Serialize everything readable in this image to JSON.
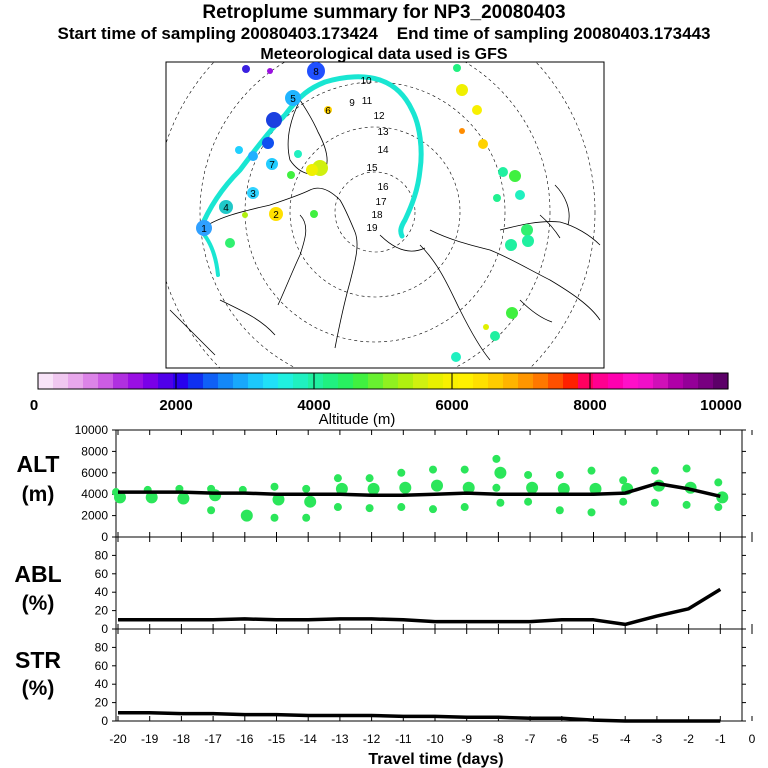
{
  "header": {
    "title": "Retroplume summary for NP3_20080403",
    "subtitle_start": "Start time of sampling 20080403.173424",
    "subtitle_end": "End time of sampling 20080403.173443",
    "met_line": "Meteorological data used is GFS"
  },
  "colors": {
    "plume": "#19e6d2",
    "markers": "#2be65a",
    "line": "#000000"
  },
  "map": {
    "day_labels": [
      {
        "n": "1",
        "c": "#30a0ff"
      },
      {
        "n": "2",
        "c": "#ffe000"
      },
      {
        "n": "3",
        "c": "#30d2ff"
      },
      {
        "n": "4",
        "c": "#20c8c8"
      },
      {
        "n": "5",
        "c": "#20b4ff"
      },
      {
        "n": "6",
        "c": "#ffd200"
      },
      {
        "n": "7",
        "c": "#22ccff"
      },
      {
        "n": "8",
        "c": "#2050ff"
      },
      {
        "n": "9",
        "c": "#ffffff"
      },
      {
        "n": "10",
        "c": "#ffffff"
      },
      {
        "n": "11",
        "c": "#ffffff"
      },
      {
        "n": "12",
        "c": "#ffffff"
      },
      {
        "n": "13",
        "c": "#ffffff"
      },
      {
        "n": "14",
        "c": "#ffffff"
      },
      {
        "n": "15",
        "c": "#ffffff"
      },
      {
        "n": "16",
        "c": "#ffffff"
      },
      {
        "n": "17",
        "c": "#ffffff"
      },
      {
        "n": "18",
        "c": "#ffffff"
      },
      {
        "n": "19",
        "c": "#ffffff"
      }
    ]
  },
  "colorbar": {
    "label": "Altitude (m)",
    "ticks": [
      "0",
      "2000",
      "4000",
      "6000",
      "8000",
      "10000"
    ],
    "colors": [
      "#f8e4f8",
      "#f0c8f0",
      "#e8a8ec",
      "#dc84e8",
      "#cc5ce4",
      "#b030e0",
      "#9a10e4",
      "#7a00e8",
      "#5000ea",
      "#2800ee",
      "#1030f0",
      "#1060f6",
      "#1488f8",
      "#18a8fc",
      "#1cc8fc",
      "#20e0f8",
      "#20f0e0",
      "#20f0c0",
      "#20f0a0",
      "#20f080",
      "#28f060",
      "#40f040",
      "#68f030",
      "#90f020",
      "#b0f010",
      "#d0f010",
      "#e8f000",
      "#f8f000",
      "#fff000",
      "#ffe000",
      "#ffcc00",
      "#ffb400",
      "#ff9600",
      "#ff7800",
      "#ff5000",
      "#ff2000",
      "#ff0060",
      "#ff0090",
      "#ff00b0",
      "#ff10c8",
      "#f010c8",
      "#d010b8",
      "#b000a8",
      "#940098",
      "#780080",
      "#5c0068"
    ]
  },
  "panels": {
    "alt_label": [
      "ALT",
      "(m)"
    ],
    "abl_label": [
      "ABL",
      "(%)"
    ],
    "str_label": [
      "STR",
      "(%)"
    ],
    "xlabel": "Travel time (days)"
  },
  "chart_data": [
    {
      "type": "line",
      "title": "ALT",
      "xlabel": "Travel time (days)",
      "ylabel": "(m)",
      "xlim": [
        -20,
        0
      ],
      "ylim": [
        0,
        10000
      ],
      "x_ticks": [
        "-20",
        "-19",
        "-18",
        "-17",
        "-16",
        "-15",
        "-14",
        "-13",
        "-12",
        "-11",
        "-10",
        "-9",
        "-8",
        "-7",
        "-6",
        "-5",
        "-4",
        "-3",
        "-2",
        "-1",
        "0"
      ],
      "y_ticks": [
        "0",
        "2000",
        "4000",
        "6000",
        "8000",
        "10000"
      ],
      "series": [
        {
          "name": "mean altitude",
          "x": [
            -20,
            -19,
            -18,
            -17,
            -16,
            -15,
            -14,
            -13,
            -12,
            -11,
            -10,
            -9,
            -8,
            -7,
            -6,
            -5,
            -4,
            -3,
            -2,
            -1
          ],
          "y": [
            4200,
            4200,
            4200,
            4100,
            4100,
            4000,
            4000,
            4000,
            3900,
            3900,
            4000,
            4100,
            4000,
            4000,
            4000,
            4000,
            4100,
            5000,
            4500,
            3800
          ]
        }
      ],
      "clusters": [
        {
          "x": -20,
          "y": [
            4200,
            3700
          ]
        },
        {
          "x": -19,
          "y": [
            4400,
            3700
          ]
        },
        {
          "x": -18,
          "y": [
            4500,
            3600
          ]
        },
        {
          "x": -17,
          "y": [
            4500,
            3900,
            2500
          ]
        },
        {
          "x": -16,
          "y": [
            4400,
            2000
          ]
        },
        {
          "x": -15,
          "y": [
            4700,
            3500,
            1800
          ]
        },
        {
          "x": -14,
          "y": [
            4500,
            3300,
            1800
          ]
        },
        {
          "x": -13,
          "y": [
            5500,
            4500,
            2800
          ]
        },
        {
          "x": -12,
          "y": [
            5500,
            4500,
            2700
          ]
        },
        {
          "x": -11,
          "y": [
            6000,
            4600,
            2800
          ]
        },
        {
          "x": -10,
          "y": [
            6300,
            4800,
            2600
          ]
        },
        {
          "x": -9,
          "y": [
            6300,
            4600,
            2800
          ]
        },
        {
          "x": -8,
          "y": [
            7300,
            6000,
            4600,
            3200
          ]
        },
        {
          "x": -7,
          "y": [
            5800,
            4600,
            3300
          ]
        },
        {
          "x": -6,
          "y": [
            5800,
            4500,
            2500
          ]
        },
        {
          "x": -5,
          "y": [
            6200,
            4500,
            2300
          ]
        },
        {
          "x": -4,
          "y": [
            5300,
            4500,
            3300
          ]
        },
        {
          "x": -3,
          "y": [
            6200,
            4800,
            3200
          ]
        },
        {
          "x": -2,
          "y": [
            6400,
            4600,
            3000
          ]
        },
        {
          "x": -1,
          "y": [
            5100,
            3700,
            2800
          ]
        }
      ]
    },
    {
      "type": "line",
      "title": "ABL",
      "ylabel": "(%)",
      "xlim": [
        -20,
        0
      ],
      "ylim": [
        0,
        100
      ],
      "y_ticks": [
        "0",
        "20",
        "40",
        "60",
        "80"
      ],
      "series": [
        {
          "name": "ABL fraction",
          "x": [
            -20,
            -19,
            -18,
            -17,
            -16,
            -15,
            -14,
            -13,
            -12,
            -11,
            -10,
            -9,
            -8,
            -7,
            -6,
            -5,
            -4,
            -3,
            -2,
            -1
          ],
          "y": [
            10,
            10,
            10,
            10,
            11,
            10,
            10,
            11,
            11,
            10,
            8,
            8,
            8,
            8,
            10,
            10,
            5,
            14,
            22,
            43
          ]
        }
      ]
    },
    {
      "type": "line",
      "title": "STR",
      "ylabel": "(%)",
      "xlim": [
        -20,
        0
      ],
      "ylim": [
        0,
        100
      ],
      "y_ticks": [
        "0",
        "20",
        "40",
        "60",
        "80"
      ],
      "series": [
        {
          "name": "STR fraction",
          "x": [
            -20,
            -19,
            -18,
            -17,
            -16,
            -15,
            -14,
            -13,
            -12,
            -11,
            -10,
            -9,
            -8,
            -7,
            -6,
            -5,
            -4,
            -3,
            -2,
            -1
          ],
          "y": [
            9,
            9,
            8,
            8,
            7,
            7,
            6,
            6,
            6,
            5,
            5,
            4,
            4,
            3,
            3,
            1,
            0,
            0,
            0,
            0
          ]
        }
      ]
    }
  ]
}
